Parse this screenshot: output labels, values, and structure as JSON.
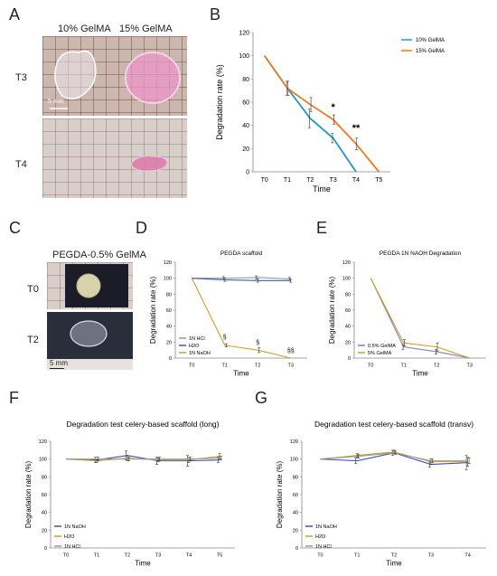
{
  "panels": {
    "A": "A",
    "B": "B",
    "C": "C",
    "D": "D",
    "E": "E",
    "F": "F",
    "G": "G"
  },
  "panelA": {
    "col1": "10% GelMA",
    "col2": "15% GelMA",
    "row1": "T3",
    "row2": "T4",
    "scale": "5 mm"
  },
  "panelC": {
    "title": "PEGDA-0.5% GelMA",
    "row1": "T0",
    "row2": "T2",
    "scale": "5 mm"
  },
  "chart_data": [
    {
      "id": "B",
      "type": "line",
      "title": "",
      "xlabel": "Time",
      "ylabel": "Degradation rate (%)",
      "categories": [
        "T0",
        "T1",
        "T2",
        "T3",
        "T4",
        "T5"
      ],
      "ylim": [
        0,
        120
      ],
      "yticks": [
        0,
        20,
        40,
        60,
        80,
        100,
        120
      ],
      "legend": "top-right",
      "series": [
        {
          "name": "10% GelMA",
          "color": "#1f9bc2",
          "values": [
            100,
            72,
            46,
            29,
            0,
            null
          ],
          "errors": [
            0,
            6,
            8,
            4,
            0,
            0
          ]
        },
        {
          "name": "15% GelMA",
          "color": "#ee7a22",
          "values": [
            100,
            72,
            58,
            45,
            24,
            0
          ],
          "errors": [
            0,
            6,
            6,
            4,
            5,
            0
          ]
        }
      ],
      "annotations": [
        {
          "x": "T3",
          "y": 53,
          "text": "*"
        },
        {
          "x": "T4",
          "y": 35,
          "text": "**"
        }
      ]
    },
    {
      "id": "D",
      "type": "line",
      "title": "PEGDA scaffold",
      "xlabel": "Time",
      "ylabel": "Degradation rate (%)",
      "categories": [
        "T0",
        "T1",
        "T2",
        "T3"
      ],
      "ylim": [
        0,
        120
      ],
      "yticks": [
        0,
        20,
        40,
        60,
        80,
        100,
        120
      ],
      "legend": "bottom-left",
      "series": [
        {
          "name": "1N HCl",
          "color": "#999999",
          "values": [
            100,
            100,
            101,
            99
          ],
          "errors": [
            0,
            2,
            2,
            2
          ]
        },
        {
          "name": "H2O",
          "color": "#3a5fad",
          "values": [
            100,
            98,
            97,
            97
          ],
          "errors": [
            0,
            2,
            2,
            2
          ]
        },
        {
          "name": "1N NaOH",
          "color": "#c9a227",
          "values": [
            100,
            16,
            10,
            0
          ],
          "errors": [
            0,
            2,
            3,
            0
          ]
        }
      ],
      "annotations": [
        {
          "x": "T1",
          "y": 24,
          "text": "§"
        },
        {
          "x": "T2",
          "y": 17,
          "text": "§"
        },
        {
          "x": "T3",
          "y": 7,
          "text": "§§"
        }
      ]
    },
    {
      "id": "E",
      "type": "line",
      "title": "PEGDA  1N NAOH Degradation",
      "xlabel": "Time",
      "ylabel": "Degradation rate (%)",
      "categories": [
        "T0",
        "T1",
        "T2",
        "T3"
      ],
      "ylim": [
        0,
        120
      ],
      "yticks": [
        0,
        20,
        40,
        60,
        80,
        100,
        120
      ],
      "legend": "bottom-left",
      "series": [
        {
          "name": "0.5% GelMA",
          "color": "#8080b8",
          "values": [
            100,
            14,
            8,
            0
          ],
          "errors": [
            0,
            3,
            3,
            0
          ]
        },
        {
          "name": "5% GelMA",
          "color": "#c9a227",
          "values": [
            100,
            19,
            14,
            0
          ],
          "errors": [
            0,
            4,
            5,
            0
          ]
        }
      ]
    },
    {
      "id": "F",
      "type": "line",
      "title": "Degradation test celery-based scaffold (long)",
      "xlabel": "Time",
      "ylabel": "Degradation rate (%)",
      "categories": [
        "T0",
        "T1",
        "T2",
        "T3",
        "T4",
        "T5"
      ],
      "ylim": [
        0,
        120
      ],
      "yticks": [
        0,
        20,
        40,
        60,
        80,
        100,
        120
      ],
      "legend": "bottom-left",
      "series": [
        {
          "name": "1N NaOH",
          "color": "#3a4fb8",
          "values": [
            100,
            99,
            104,
            98,
            98,
            99
          ],
          "errors": [
            0,
            3,
            5,
            4,
            6,
            3
          ]
        },
        {
          "name": "H2O",
          "color": "#c9a227",
          "values": [
            100,
            98,
            101,
            99,
            99,
            103
          ],
          "errors": [
            0,
            2,
            3,
            2,
            3,
            3
          ]
        },
        {
          "name": "1N HCl",
          "color": "#999999",
          "values": [
            100,
            100,
            100,
            100,
            100,
            101
          ],
          "errors": [
            0,
            2,
            2,
            2,
            2,
            2
          ]
        }
      ]
    },
    {
      "id": "G",
      "type": "line",
      "title": "Degradation test celery-based scaffold (transv)",
      "xlabel": "Time",
      "ylabel": "Degradation rate (%)",
      "categories": [
        "T0",
        "T1",
        "T2",
        "T3",
        "T4"
      ],
      "ylim": [
        0,
        120
      ],
      "yticks": [
        0,
        20,
        40,
        60,
        80,
        100,
        120
      ],
      "legend": "bottom-left",
      "series": [
        {
          "name": "1N NaOH",
          "color": "#3a4fb8",
          "values": [
            100,
            98,
            107,
            94,
            96
          ],
          "errors": [
            0,
            3,
            3,
            3,
            8
          ]
        },
        {
          "name": "H2O",
          "color": "#c9a227",
          "values": [
            100,
            104,
            108,
            97,
            97
          ],
          "errors": [
            0,
            2,
            2,
            3,
            5
          ]
        },
        {
          "name": "1N HCl",
          "color": "#999999",
          "values": [
            100,
            103,
            107,
            98,
            98
          ],
          "errors": [
            0,
            2,
            2,
            2,
            3
          ]
        }
      ]
    }
  ]
}
